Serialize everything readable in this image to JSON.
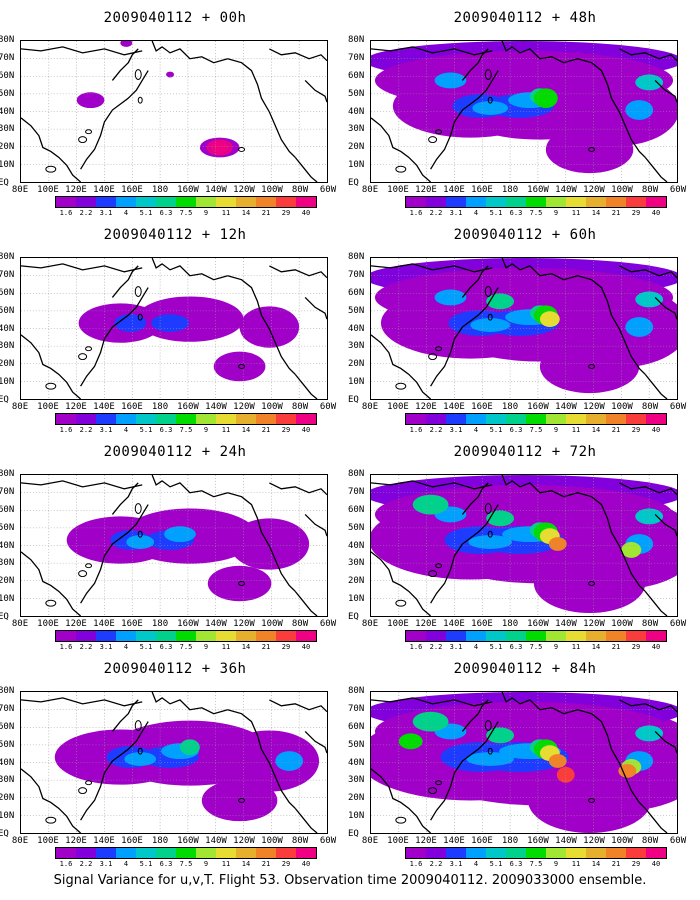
{
  "panels": [
    {
      "title": "2009040112 + 00h",
      "level": 0
    },
    {
      "title": "2009040112 + 48h",
      "level": 4
    },
    {
      "title": "2009040112 + 12h",
      "level": 1
    },
    {
      "title": "2009040112 + 60h",
      "level": 5
    },
    {
      "title": "2009040112 + 24h",
      "level": 2
    },
    {
      "title": "2009040112 + 72h",
      "level": 6
    },
    {
      "title": "2009040112 + 36h",
      "level": 3
    },
    {
      "title": "2009040112 + 84h",
      "level": 7
    }
  ],
  "lat_labels": [
    "80N",
    "70N",
    "60N",
    "50N",
    "40N",
    "30N",
    "20N",
    "10N",
    "EQ"
  ],
  "lon_labels": [
    "80E",
    "100E",
    "120E",
    "140E",
    "160E",
    "180",
    "160W",
    "140W",
    "120W",
    "100W",
    "80W",
    "60W"
  ],
  "colorbar": {
    "labels": [
      "1.6",
      "2.2",
      "3.1",
      "4",
      "5.1",
      "6.3",
      "7.5",
      "9",
      "11",
      "14",
      "21",
      "29",
      "40"
    ],
    "colors": [
      "#a000c8",
      "#8200dc",
      "#1e3cff",
      "#00a0ff",
      "#00c8c8",
      "#00d28c",
      "#00dc00",
      "#a0e632",
      "#e6dc32",
      "#e6af2d",
      "#f08228",
      "#fa3c3c",
      "#f00082"
    ]
  },
  "footer": "Signal Variance for u,v,T. Flight 53. Observation time 2009040112. 2009033000 ensemble."
}
